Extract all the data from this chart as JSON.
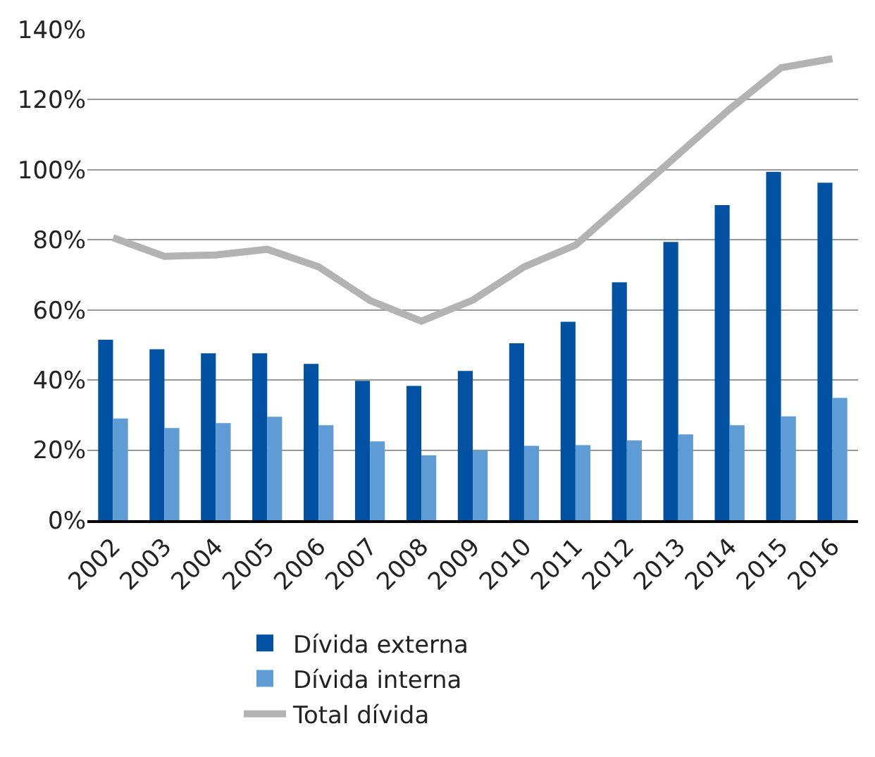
{
  "chart_data": {
    "type": "bar",
    "categories": [
      "2002",
      "2003",
      "2004",
      "2005",
      "2006",
      "2007",
      "2008",
      "2009",
      "2010",
      "2011",
      "2012",
      "2013",
      "2014",
      "2015",
      "2016"
    ],
    "series": [
      {
        "name": "Dívida externa",
        "color": "#0152a2",
        "values": [
          51.5,
          48.8,
          47.6,
          47.6,
          44.6,
          39.8,
          38.3,
          42.6,
          50.5,
          56.6,
          67.9,
          79.4,
          89.9,
          99.4,
          96.3
        ]
      },
      {
        "name": "Dívida interna",
        "color": "#5f9bd4",
        "values": [
          29.0,
          26.3,
          27.7,
          29.5,
          27.1,
          22.5,
          18.5,
          19.9,
          21.2,
          21.4,
          22.8,
          24.5,
          27.1,
          29.6,
          34.9
        ]
      },
      {
        "name": "Total dívida",
        "type": "line",
        "color": "#b3b3b3",
        "values": [
          80.6,
          75.3,
          75.7,
          77.3,
          72.3,
          62.7,
          56.8,
          62.8,
          72.3,
          78.5,
          91.4,
          104.4,
          117.3,
          129.1,
          131.7
        ]
      }
    ],
    "ylim": [
      0,
      140
    ],
    "yticks": [
      {
        "value": 0,
        "label": "0%"
      },
      {
        "value": 20,
        "label": "20%"
      },
      {
        "value": 40,
        "label": "40%"
      },
      {
        "value": 60,
        "label": "60%"
      },
      {
        "value": 80,
        "label": "80%"
      },
      {
        "value": 100,
        "label": "100%"
      },
      {
        "value": 120,
        "label": "120%"
      },
      {
        "value": 140,
        "label": "140%"
      }
    ],
    "grid": "y",
    "legend": "bottom",
    "marker": "none"
  }
}
